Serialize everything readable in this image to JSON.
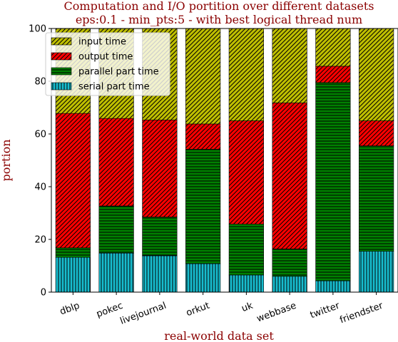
{
  "chart_data": {
    "type": "bar",
    "stacked": true,
    "title": "Computation and I/O portition over different datasets",
    "subtitle": "eps:0.1 - min_pts:5 - with best logical thread num",
    "xlabel": "real-world data set",
    "ylabel": "portion",
    "ylim": [
      0,
      100
    ],
    "yticks": [
      "0",
      "20",
      "40",
      "60",
      "80",
      "100"
    ],
    "categories": [
      "dblp",
      "pokec",
      "livejournal",
      "orkut",
      "uk",
      "webbase",
      "twitter",
      "friendster"
    ],
    "series": [
      {
        "name": "serial part time",
        "color": "#17becf",
        "hatch": "vertical",
        "values": [
          13.2,
          14.8,
          13.8,
          10.8,
          6.5,
          6.0,
          4.3,
          15.5
        ]
      },
      {
        "name": "parallel part time",
        "color": "#008000",
        "hatch": "horizontal",
        "values": [
          3.6,
          17.9,
          14.7,
          43.4,
          19.3,
          10.4,
          75.2,
          40.0
        ]
      },
      {
        "name": "output time",
        "color": "#ff0000",
        "hatch": "diagonal",
        "values": [
          51.0,
          33.2,
          36.8,
          9.6,
          39.2,
          55.4,
          6.2,
          9.5
        ]
      },
      {
        "name": "input time",
        "color": "#bfbf00",
        "hatch": "diagonal",
        "values": [
          32.2,
          34.1,
          34.7,
          36.2,
          35.0,
          28.2,
          14.3,
          35.0
        ]
      }
    ],
    "legend": {
      "placement": "top-left",
      "order": [
        "input time",
        "output time",
        "parallel part time",
        "serial part time"
      ]
    },
    "grid": false
  }
}
